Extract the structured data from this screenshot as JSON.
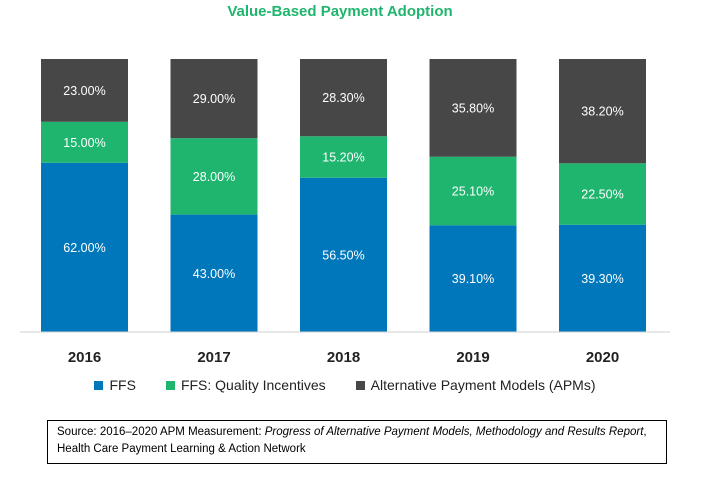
{
  "chart_data": {
    "type": "bar",
    "stacked": true,
    "title": "Value-Based Payment Adoption",
    "categories": [
      "2016",
      "2017",
      "2018",
      "2019",
      "2020"
    ],
    "series": [
      {
        "name": "FFS",
        "color": "#0077bb",
        "values": [
          62.0,
          43.0,
          56.5,
          39.1,
          39.3
        ],
        "labels": [
          "62.00%",
          "43.00%",
          "56.50%",
          "39.10%",
          "39.30%"
        ]
      },
      {
        "name": "FFS: Quality Incentives",
        "color": "#1fb56f",
        "values": [
          15.0,
          28.0,
          15.2,
          25.1,
          22.5
        ],
        "labels": [
          "15.00%",
          "28.00%",
          "15.20%",
          "25.10%",
          "22.50%"
        ]
      },
      {
        "name": "Alternative Payment Models (APMs)",
        "color": "#474747",
        "values": [
          23.0,
          29.0,
          28.3,
          35.8,
          38.2
        ],
        "labels": [
          "23.00%",
          "29.00%",
          "28.30%",
          "35.80%",
          "38.20%"
        ]
      }
    ],
    "ylim": [
      0,
      100
    ],
    "grid": false,
    "legend_position": "bottom"
  },
  "source": {
    "prefix": "Source: 2016–2020 APM Measurement: ",
    "italic": "Progress of Alternative Payment Models, Methodology and Results Report",
    "suffix": ", Health Care Payment Learning & Action Network"
  }
}
